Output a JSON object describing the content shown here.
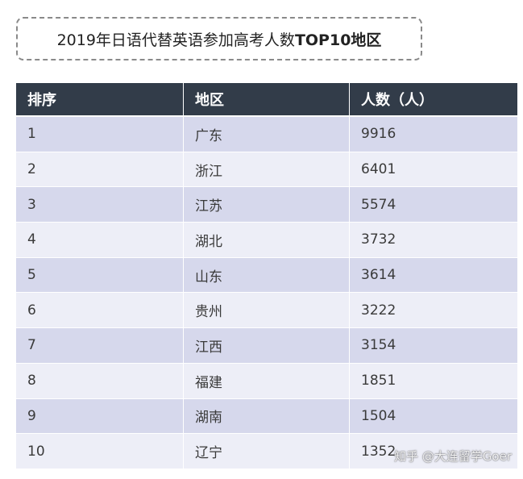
{
  "title": {
    "prefix": "2019年日语代替英语参加高考人数",
    "bold": "TOP10地区"
  },
  "table": {
    "headers": [
      "排序",
      "地区",
      "人数（人）"
    ],
    "rows": [
      [
        "1",
        "广东",
        "9916"
      ],
      [
        "2",
        "浙江",
        "6401"
      ],
      [
        "3",
        "江苏",
        "5574"
      ],
      [
        "4",
        "湖北",
        "3732"
      ],
      [
        "5",
        "山东",
        "3614"
      ],
      [
        "6",
        "贵州",
        "3222"
      ],
      [
        "7",
        "江西",
        "3154"
      ],
      [
        "8",
        "福建",
        "1851"
      ],
      [
        "9",
        "湖南",
        "1504"
      ],
      [
        "10",
        "辽宁",
        "1352"
      ]
    ]
  },
  "watermark": "知乎 @大连留学Goer",
  "colors": {
    "header_bg": "#323c49",
    "row_odd": "#d6d8ec",
    "row_even": "#edeef7"
  }
}
